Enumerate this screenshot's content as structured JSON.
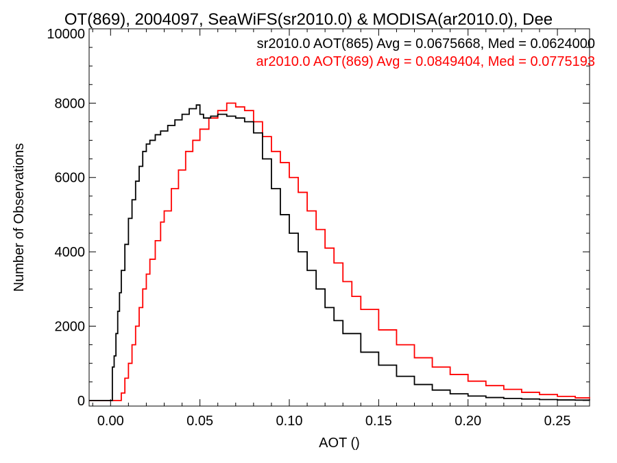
{
  "chart_data": {
    "type": "line",
    "title": "OT(869), 2004097, SeaWiFS(sr2010.0) & MODISA(ar2010.0), Dee",
    "xlabel": "AOT ()",
    "ylabel": "Number of Observations",
    "xlim": [
      -0.012,
      0.268
    ],
    "ylim": [
      -150,
      10000
    ],
    "xticks": [
      0.0,
      0.05,
      0.1,
      0.15,
      0.2,
      0.25
    ],
    "xtick_labels": [
      "0.00",
      "0.05",
      "0.10",
      "0.15",
      "0.20",
      "0.25"
    ],
    "yticks": [
      0,
      2000,
      4000,
      6000,
      8000,
      10000
    ],
    "ytick_labels": [
      "0",
      "2000",
      "4000",
      "6000",
      "8000",
      "10000"
    ],
    "grid": false,
    "step": true,
    "series": [
      {
        "name": "sr2010.0 AOT(865) Avg = 0.0675668, Med = 0.0624000",
        "color": "#000000",
        "x": [
          -0.012,
          0.0,
          0.001,
          0.002,
          0.003,
          0.004,
          0.005,
          0.006,
          0.008,
          0.01,
          0.012,
          0.014,
          0.016,
          0.018,
          0.02,
          0.022,
          0.025,
          0.028,
          0.032,
          0.036,
          0.04,
          0.044,
          0.048,
          0.05,
          0.052,
          0.056,
          0.06,
          0.065,
          0.07,
          0.075,
          0.08,
          0.085,
          0.09,
          0.095,
          0.1,
          0.105,
          0.11,
          0.115,
          0.12,
          0.125,
          0.13,
          0.14,
          0.15,
          0.16,
          0.17,
          0.18,
          0.19,
          0.2,
          0.21,
          0.22,
          0.23,
          0.24,
          0.25,
          0.26,
          0.268
        ],
        "values": [
          0,
          0,
          900,
          1200,
          1800,
          2400,
          2900,
          3500,
          4200,
          4900,
          5400,
          5900,
          6300,
          6700,
          6900,
          7000,
          7150,
          7250,
          7400,
          7550,
          7700,
          7850,
          7950,
          7700,
          7600,
          7650,
          7700,
          7650,
          7600,
          7500,
          7200,
          6500,
          5700,
          5000,
          4500,
          4000,
          3500,
          3000,
          2500,
          2150,
          1800,
          1300,
          950,
          650,
          430,
          280,
          180,
          120,
          80,
          55,
          40,
          25,
          15,
          10,
          5
        ]
      },
      {
        "name": "ar2010.0 AOT(869) Avg = 0.0849404, Med = 0.0775193",
        "color": "#ff0000",
        "x": [
          -0.012,
          0.0,
          0.004,
          0.006,
          0.008,
          0.01,
          0.012,
          0.014,
          0.016,
          0.018,
          0.02,
          0.022,
          0.025,
          0.028,
          0.03,
          0.034,
          0.038,
          0.042,
          0.046,
          0.05,
          0.055,
          0.06,
          0.065,
          0.07,
          0.075,
          0.08,
          0.085,
          0.09,
          0.095,
          0.1,
          0.105,
          0.11,
          0.115,
          0.12,
          0.125,
          0.13,
          0.135,
          0.14,
          0.15,
          0.16,
          0.17,
          0.18,
          0.19,
          0.2,
          0.21,
          0.22,
          0.23,
          0.24,
          0.25,
          0.26,
          0.268
        ],
        "values": [
          0,
          0,
          0,
          200,
          600,
          1000,
          1500,
          2000,
          2500,
          3000,
          3400,
          3800,
          4300,
          4800,
          5100,
          5700,
          6200,
          6700,
          7000,
          7300,
          7600,
          7800,
          8000,
          7900,
          7800,
          7500,
          7100,
          6700,
          6400,
          6000,
          5600,
          5100,
          4600,
          4100,
          3700,
          3200,
          2800,
          2450,
          1900,
          1500,
          1150,
          900,
          700,
          520,
          400,
          300,
          220,
          160,
          110,
          70,
          50
        ]
      }
    ]
  }
}
